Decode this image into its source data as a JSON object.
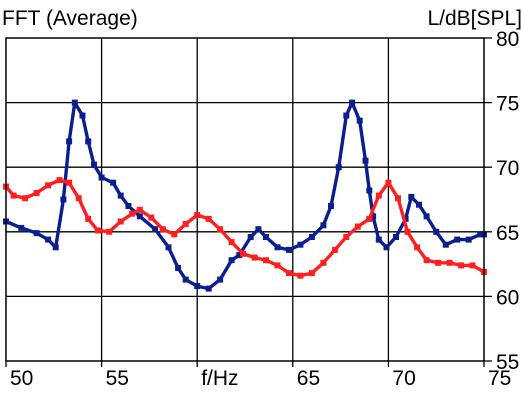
{
  "header": {
    "title": "FFT (Average)",
    "unit_label": "L/dB[SPL]"
  },
  "colors": {
    "series_blue": "#0a1f8f",
    "series_red": "#ff1f1f",
    "grid": "#000000",
    "background": "#ffffff"
  },
  "chart_data": {
    "type": "line",
    "title": "FFT (Average)",
    "xlabel": "f/Hz",
    "ylabel": "L/dB[SPL]",
    "xlim": [
      50,
      75
    ],
    "ylim": [
      55,
      80
    ],
    "grid": true,
    "x_ticks": [
      {
        "value": 50,
        "label": "50"
      },
      {
        "value": 55,
        "label": "55"
      },
      {
        "value": 60,
        "label": "f/Hz"
      },
      {
        "value": 65,
        "label": "65"
      },
      {
        "value": 70,
        "label": "70"
      },
      {
        "value": 75,
        "label": "75"
      }
    ],
    "y_ticks": [
      {
        "value": 80,
        "label": "80"
      },
      {
        "value": 75,
        "label": "75"
      },
      {
        "value": 70,
        "label": "70"
      },
      {
        "value": 65,
        "label": "65"
      },
      {
        "value": 60,
        "label": "60"
      },
      {
        "value": 55,
        "label": "55"
      }
    ],
    "series": [
      {
        "color": "#0a1f8f",
        "points": [
          [
            50.0,
            65.8
          ],
          [
            50.8,
            65.3
          ],
          [
            51.6,
            64.9
          ],
          [
            52.2,
            64.4
          ],
          [
            52.6,
            63.8
          ],
          [
            53.0,
            67.5
          ],
          [
            53.3,
            72.0
          ],
          [
            53.6,
            75.0
          ],
          [
            54.0,
            74.0
          ],
          [
            54.3,
            72.0
          ],
          [
            54.6,
            70.2
          ],
          [
            55.0,
            69.2
          ],
          [
            55.6,
            68.8
          ],
          [
            56.0,
            67.8
          ],
          [
            56.4,
            67.0
          ],
          [
            57.0,
            66.2
          ],
          [
            57.8,
            65.2
          ],
          [
            58.5,
            63.8
          ],
          [
            59.0,
            62.2
          ],
          [
            59.4,
            61.3
          ],
          [
            60.0,
            60.8
          ],
          [
            60.6,
            60.6
          ],
          [
            61.2,
            61.3
          ],
          [
            61.8,
            62.8
          ],
          [
            62.2,
            63.2
          ],
          [
            62.8,
            64.6
          ],
          [
            63.2,
            65.2
          ],
          [
            63.6,
            64.6
          ],
          [
            64.2,
            63.8
          ],
          [
            64.8,
            63.6
          ],
          [
            65.4,
            64.0
          ],
          [
            66.0,
            64.6
          ],
          [
            66.6,
            65.5
          ],
          [
            67.0,
            67.0
          ],
          [
            67.4,
            70.0
          ],
          [
            67.8,
            74.0
          ],
          [
            68.1,
            75.0
          ],
          [
            68.5,
            73.6
          ],
          [
            68.8,
            70.5
          ],
          [
            69.0,
            68.2
          ],
          [
            69.2,
            66.2
          ],
          [
            69.5,
            64.4
          ],
          [
            69.9,
            63.8
          ],
          [
            70.4,
            64.6
          ],
          [
            70.9,
            66.0
          ],
          [
            71.2,
            67.7
          ],
          [
            71.6,
            67.1
          ],
          [
            72.0,
            66.2
          ],
          [
            72.5,
            65.0
          ],
          [
            73.0,
            64.0
          ],
          [
            73.6,
            64.4
          ],
          [
            74.2,
            64.4
          ],
          [
            74.8,
            64.8
          ],
          [
            75.0,
            64.8
          ]
        ]
      },
      {
        "color": "#ff1f1f",
        "points": [
          [
            50.0,
            68.5
          ],
          [
            50.4,
            67.8
          ],
          [
            51.0,
            67.6
          ],
          [
            51.6,
            68.0
          ],
          [
            52.2,
            68.6
          ],
          [
            52.8,
            69.0
          ],
          [
            53.3,
            68.8
          ],
          [
            53.8,
            67.6
          ],
          [
            54.3,
            66.0
          ],
          [
            54.8,
            65.1
          ],
          [
            55.4,
            65.0
          ],
          [
            56.0,
            65.8
          ],
          [
            56.6,
            66.4
          ],
          [
            57.0,
            66.7
          ],
          [
            57.6,
            66.1
          ],
          [
            58.2,
            65.2
          ],
          [
            58.8,
            64.8
          ],
          [
            59.4,
            65.6
          ],
          [
            60.0,
            66.3
          ],
          [
            60.6,
            66.0
          ],
          [
            61.2,
            65.2
          ],
          [
            61.8,
            64.2
          ],
          [
            62.4,
            63.3
          ],
          [
            63.0,
            63.0
          ],
          [
            63.6,
            62.8
          ],
          [
            64.2,
            62.4
          ],
          [
            64.8,
            61.8
          ],
          [
            65.4,
            61.6
          ],
          [
            66.0,
            61.8
          ],
          [
            66.6,
            62.6
          ],
          [
            67.2,
            63.6
          ],
          [
            67.8,
            64.6
          ],
          [
            68.4,
            65.4
          ],
          [
            69.0,
            66.0
          ],
          [
            69.5,
            67.8
          ],
          [
            70.0,
            68.8
          ],
          [
            70.5,
            67.6
          ],
          [
            71.0,
            65.0
          ],
          [
            71.5,
            63.8
          ],
          [
            72.0,
            62.8
          ],
          [
            72.6,
            62.6
          ],
          [
            73.2,
            62.6
          ],
          [
            73.8,
            62.4
          ],
          [
            74.4,
            62.4
          ],
          [
            75.0,
            61.9
          ]
        ]
      }
    ]
  }
}
